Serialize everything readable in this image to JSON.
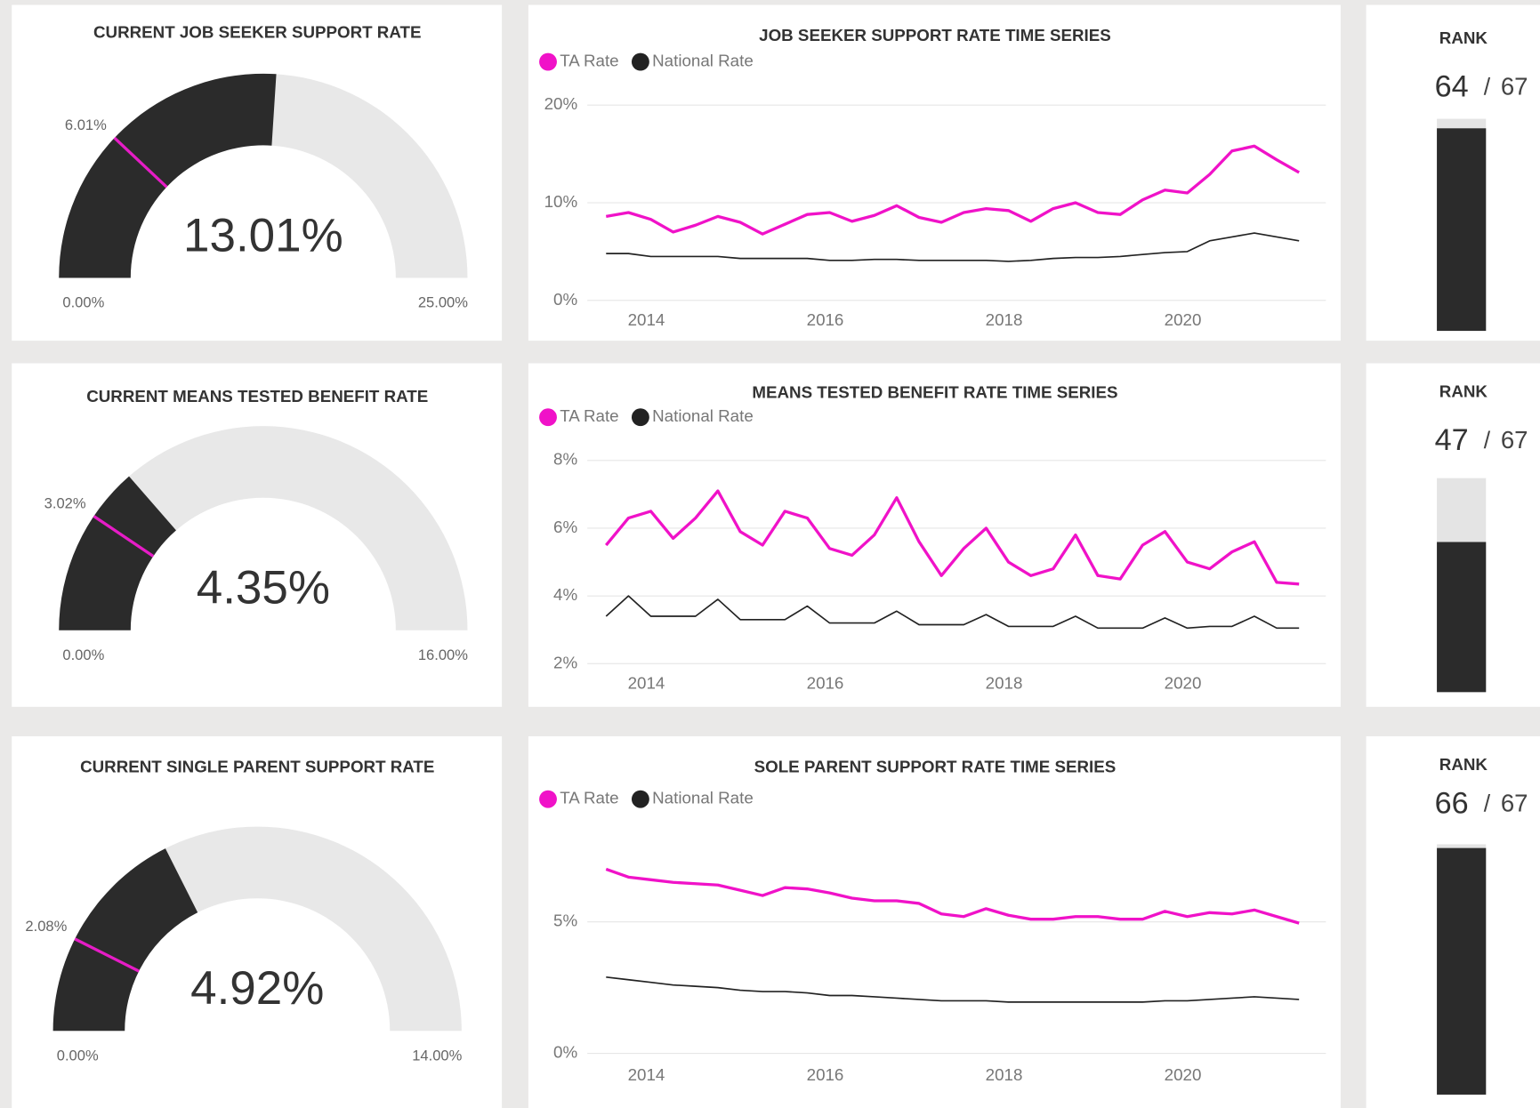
{
  "chart_data": [
    {
      "type": "gauge",
      "title": "CURRENT JOB SEEKER SUPPORT RATE",
      "values": [
        13.01
      ],
      "value_labels": [
        "13.01%"
      ],
      "target": 6.01,
      "target_label": "6.01%",
      "ylim": [
        0,
        25
      ],
      "yticks": [
        {
          "value": 0,
          "label": "0.00%"
        },
        {
          "value": 25,
          "label": "25.00%"
        }
      ],
      "color": "#2b2b2b",
      "track_color": "#e8e8e8",
      "target_color": "#e61cc6"
    },
    {
      "type": "line",
      "title": "JOB SEEKER SUPPORT RATE TIME SERIES",
      "x": [
        2013.55,
        2013.8,
        2014.05,
        2014.3,
        2014.55,
        2014.8,
        2015.05,
        2015.3,
        2015.55,
        2015.8,
        2016.05,
        2016.3,
        2016.55,
        2016.8,
        2017.05,
        2017.3,
        2017.55,
        2017.8,
        2018.05,
        2018.3,
        2018.55,
        2018.8,
        2019.05,
        2019.3,
        2019.55,
        2019.8,
        2020.05,
        2020.3,
        2020.55,
        2020.8,
        2021.05,
        2021.3
      ],
      "xlim": [
        2013.34,
        2021.6
      ],
      "xticks": [
        2014,
        2016,
        2018,
        2020
      ],
      "ylim": [
        0,
        20
      ],
      "yticks": [
        {
          "value": 0,
          "label": "0%"
        },
        {
          "value": 10,
          "label": "10%"
        },
        {
          "value": 20,
          "label": "20%"
        }
      ],
      "grid": true,
      "series": [
        {
          "name": "TA Rate",
          "color": "#f012c8",
          "values": [
            8.6,
            9.0,
            8.3,
            7.0,
            7.7,
            8.6,
            8.0,
            6.8,
            7.8,
            8.8,
            9.0,
            8.1,
            8.7,
            9.7,
            8.5,
            8.0,
            9.0,
            9.4,
            9.2,
            8.1,
            9.4,
            10.0,
            9.0,
            8.8,
            10.3,
            11.3,
            11.0,
            12.9,
            15.3,
            15.8,
            14.4,
            13.1
          ]
        },
        {
          "name": "National Rate",
          "color": "#222222",
          "values": [
            4.8,
            4.8,
            4.5,
            4.5,
            4.5,
            4.5,
            4.3,
            4.3,
            4.3,
            4.3,
            4.1,
            4.1,
            4.2,
            4.2,
            4.1,
            4.1,
            4.1,
            4.1,
            4.0,
            4.1,
            4.3,
            4.4,
            4.4,
            4.5,
            4.7,
            4.9,
            5.0,
            6.1,
            6.5,
            6.9,
            6.5,
            6.1
          ]
        }
      ]
    },
    {
      "type": "rank",
      "title": "RANK",
      "values": [
        64
      ],
      "max": 67,
      "separator": "/",
      "color": "#2b2b2b",
      "track_color": "#e4e4e4"
    },
    {
      "type": "gauge",
      "title": "CURRENT MEANS TESTED BENEFIT RATE",
      "values": [
        4.35
      ],
      "value_labels": [
        "4.35%"
      ],
      "target": 3.02,
      "target_label": "3.02%",
      "ylim": [
        0,
        16
      ],
      "yticks": [
        {
          "value": 0,
          "label": "0.00%"
        },
        {
          "value": 16,
          "label": "16.00%"
        }
      ],
      "color": "#2b2b2b",
      "track_color": "#e8e8e8",
      "target_color": "#e61cc6"
    },
    {
      "type": "line",
      "title": "MEANS TESTED BENEFIT RATE TIME SERIES",
      "x": [
        2013.55,
        2013.8,
        2014.05,
        2014.3,
        2014.55,
        2014.8,
        2015.05,
        2015.3,
        2015.55,
        2015.8,
        2016.05,
        2016.3,
        2016.55,
        2016.8,
        2017.05,
        2017.3,
        2017.55,
        2017.8,
        2018.05,
        2018.3,
        2018.55,
        2018.8,
        2019.05,
        2019.3,
        2019.55,
        2019.8,
        2020.05,
        2020.3,
        2020.55,
        2020.8,
        2021.05,
        2021.3
      ],
      "xlim": [
        2013.34,
        2021.6
      ],
      "xticks": [
        2014,
        2016,
        2018,
        2020
      ],
      "ylim": [
        2,
        8
      ],
      "yticks": [
        {
          "value": 2,
          "label": "2%"
        },
        {
          "value": 4,
          "label": "4%"
        },
        {
          "value": 6,
          "label": "6%"
        },
        {
          "value": 8,
          "label": "8%"
        }
      ],
      "grid": true,
      "series": [
        {
          "name": "TA Rate",
          "color": "#f012c8",
          "values": [
            5.5,
            6.3,
            6.5,
            5.7,
            6.3,
            7.1,
            5.9,
            5.5,
            6.5,
            6.3,
            5.4,
            5.2,
            5.8,
            6.9,
            5.6,
            4.6,
            5.4,
            6.0,
            5.0,
            4.6,
            4.8,
            5.8,
            4.6,
            4.5,
            5.5,
            5.9,
            5.0,
            4.8,
            5.3,
            5.6,
            4.4,
            4.35
          ]
        },
        {
          "name": "National Rate",
          "color": "#222222",
          "values": [
            3.4,
            4.0,
            3.4,
            3.4,
            3.4,
            3.9,
            3.3,
            3.3,
            3.3,
            3.7,
            3.2,
            3.2,
            3.2,
            3.55,
            3.15,
            3.15,
            3.15,
            3.45,
            3.1,
            3.1,
            3.1,
            3.4,
            3.05,
            3.05,
            3.05,
            3.35,
            3.05,
            3.1,
            3.1,
            3.4,
            3.05,
            3.05
          ]
        }
      ]
    },
    {
      "type": "rank",
      "title": "RANK",
      "values": [
        47
      ],
      "max": 67,
      "separator": "/",
      "color": "#2b2b2b",
      "track_color": "#e4e4e4"
    },
    {
      "type": "gauge",
      "title": "CURRENT SINGLE PARENT SUPPORT RATE",
      "values": [
        4.92
      ],
      "value_labels": [
        "4.92%"
      ],
      "target": 2.08,
      "target_label": "2.08%",
      "ylim": [
        0,
        14
      ],
      "yticks": [
        {
          "value": 0,
          "label": "0.00%"
        },
        {
          "value": 14,
          "label": "14.00%"
        }
      ],
      "color": "#2b2b2b",
      "track_color": "#e8e8e8",
      "target_color": "#e61cc6"
    },
    {
      "type": "line",
      "title": "SOLE PARENT SUPPORT RATE TIME SERIES",
      "x": [
        2013.55,
        2013.8,
        2014.05,
        2014.3,
        2014.55,
        2014.8,
        2015.05,
        2015.3,
        2015.55,
        2015.8,
        2016.05,
        2016.3,
        2016.55,
        2016.8,
        2017.05,
        2017.3,
        2017.55,
        2017.8,
        2018.05,
        2018.3,
        2018.55,
        2018.8,
        2019.05,
        2019.3,
        2019.55,
        2019.8,
        2020.05,
        2020.3,
        2020.55,
        2020.8,
        2021.05,
        2021.3
      ],
      "xlim": [
        2013.34,
        2021.6
      ],
      "xticks": [
        2014,
        2016,
        2018,
        2020
      ],
      "ylim": [
        0,
        8
      ],
      "yticks": [
        {
          "value": 0,
          "label": "0%"
        },
        {
          "value": 5,
          "label": "5%"
        }
      ],
      "grid": true,
      "series": [
        {
          "name": "TA Rate",
          "color": "#f012c8",
          "values": [
            7.0,
            6.7,
            6.6,
            6.5,
            6.45,
            6.4,
            6.2,
            6.0,
            6.3,
            6.25,
            6.1,
            5.9,
            5.8,
            5.8,
            5.7,
            5.3,
            5.2,
            5.5,
            5.25,
            5.1,
            5.1,
            5.2,
            5.2,
            5.1,
            5.1,
            5.4,
            5.2,
            5.35,
            5.3,
            5.45,
            5.2,
            4.95
          ]
        },
        {
          "name": "National Rate",
          "color": "#222222",
          "values": [
            2.9,
            2.8,
            2.7,
            2.6,
            2.55,
            2.5,
            2.4,
            2.35,
            2.35,
            2.3,
            2.2,
            2.2,
            2.15,
            2.1,
            2.05,
            2.0,
            2.0,
            2.0,
            1.95,
            1.95,
            1.95,
            1.95,
            1.95,
            1.95,
            1.95,
            2.0,
            2.0,
            2.05,
            2.1,
            2.15,
            2.1,
            2.05
          ]
        }
      ]
    },
    {
      "type": "rank",
      "title": "RANK",
      "values": [
        66
      ],
      "max": 67,
      "separator": "/",
      "color": "#2b2b2b",
      "track_color": "#e4e4e4"
    }
  ]
}
